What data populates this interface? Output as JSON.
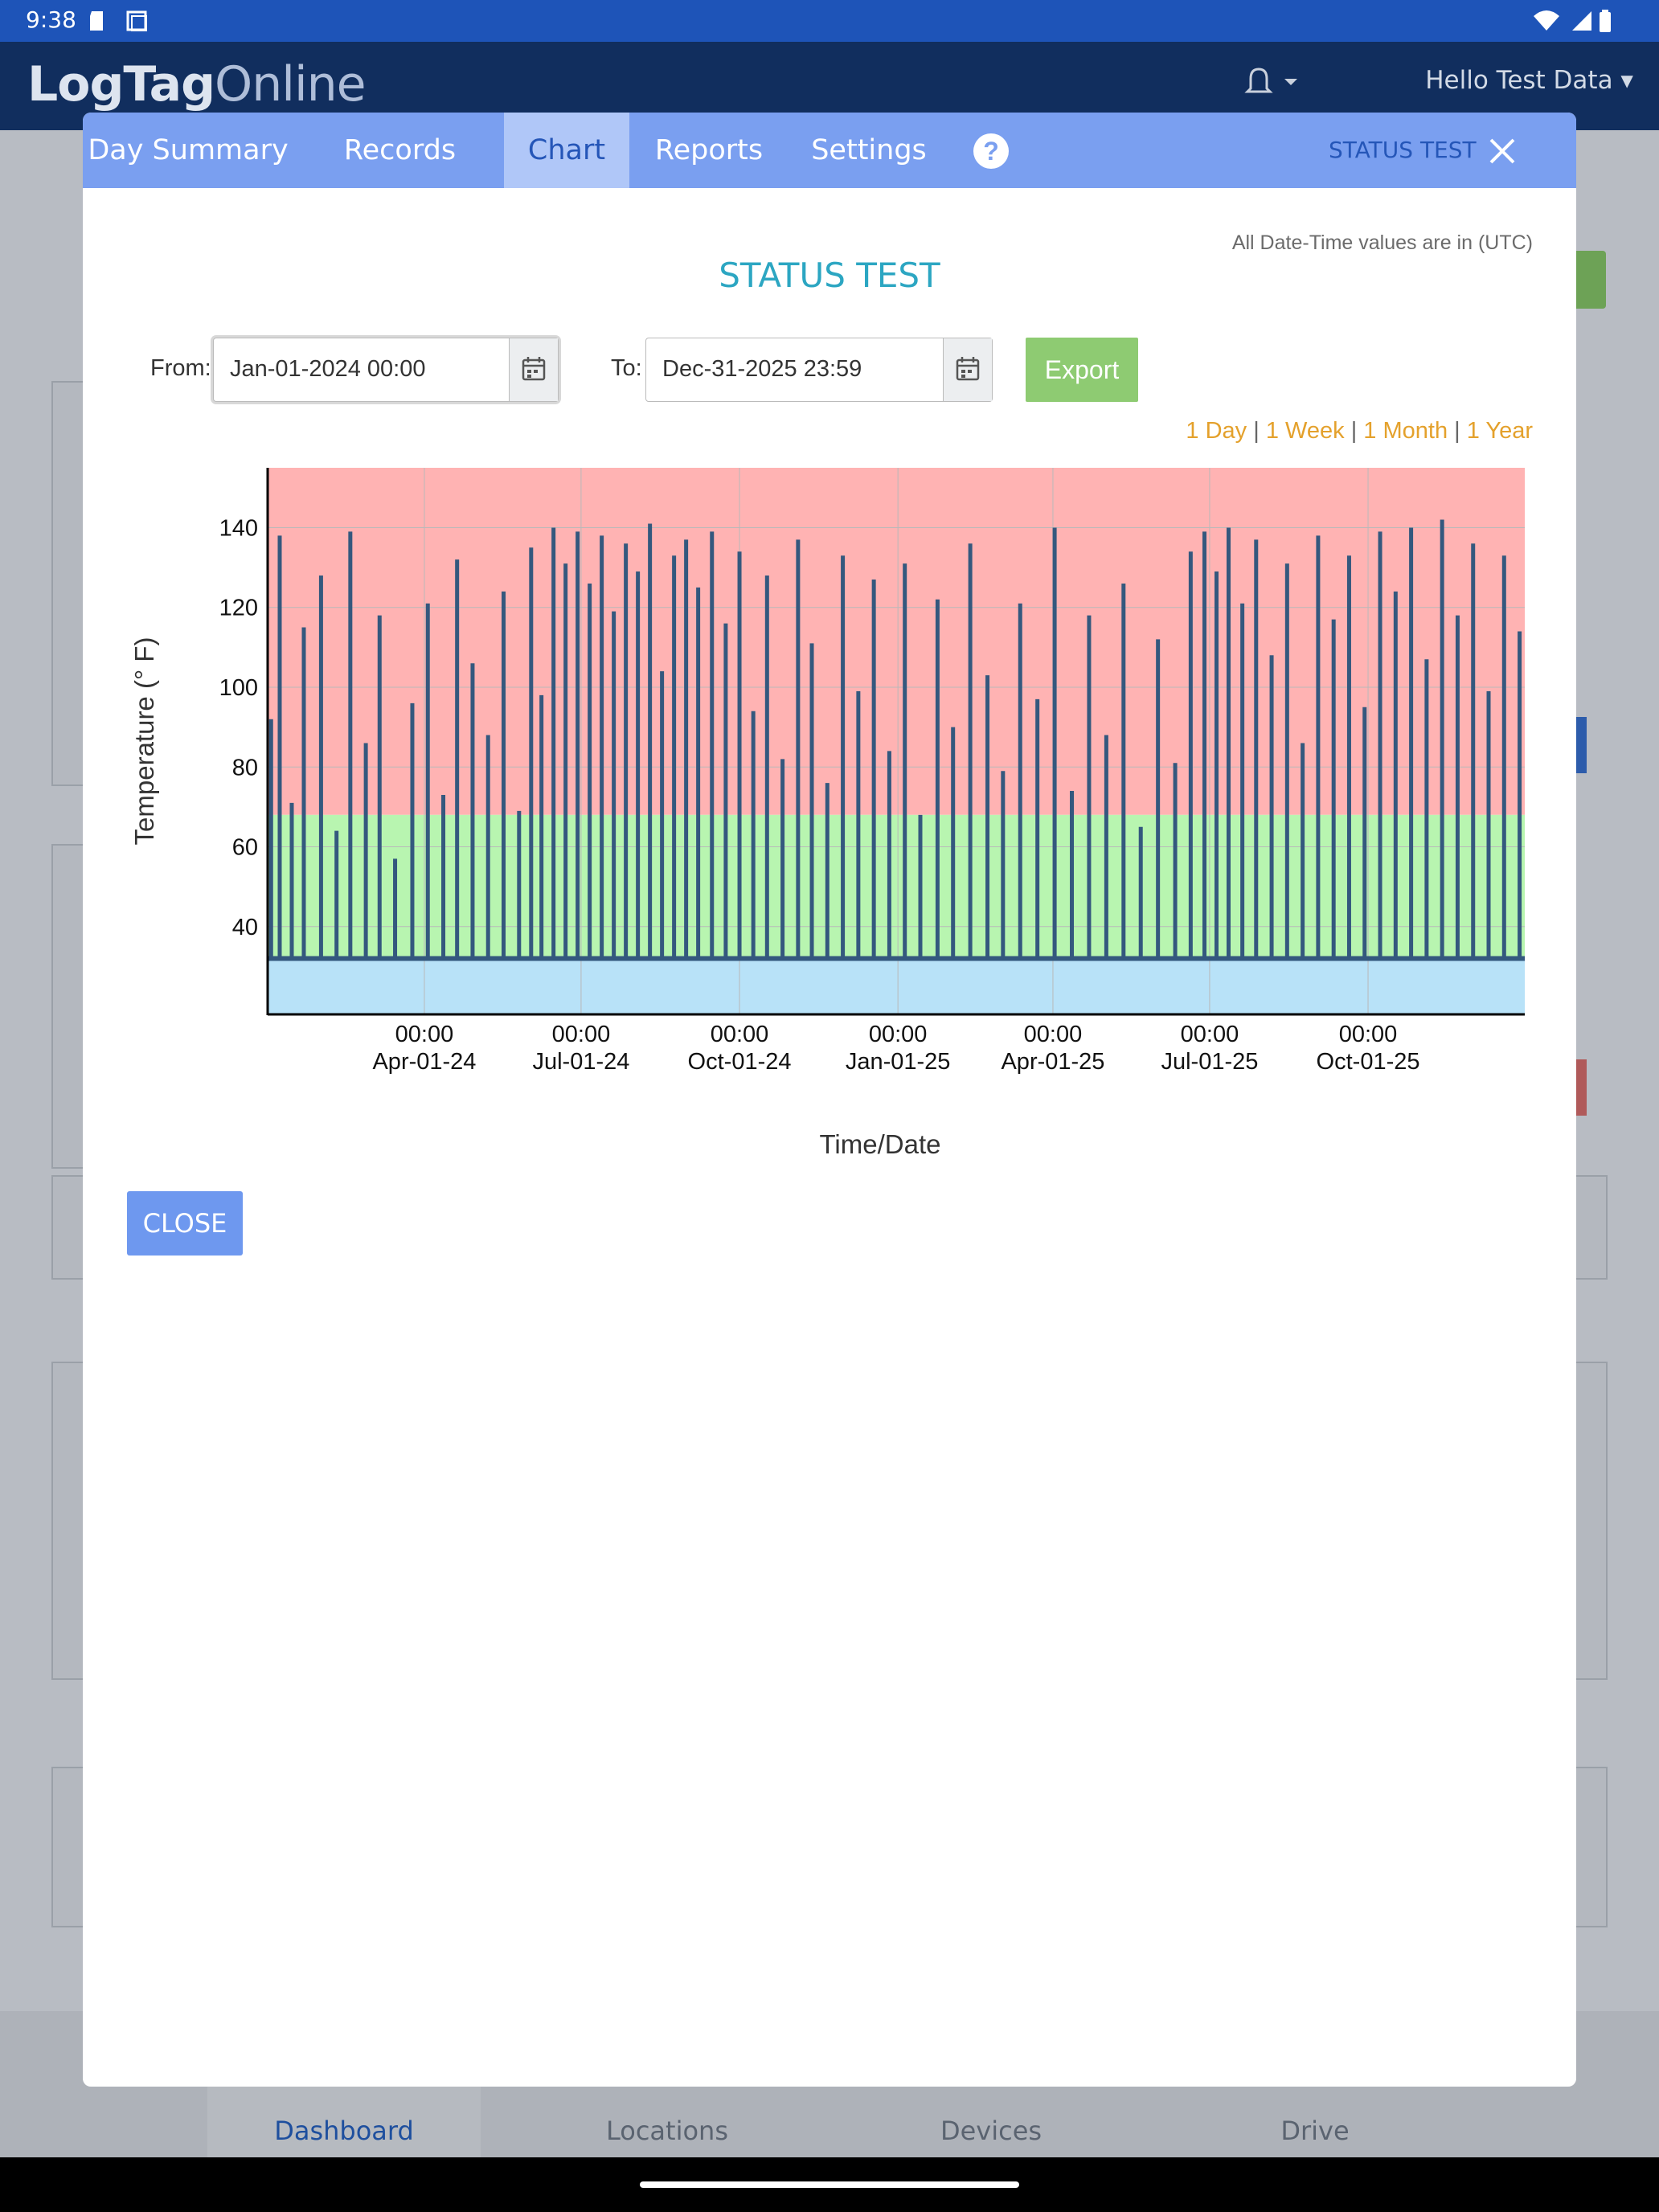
{
  "status_bar": {
    "time": "9:38"
  },
  "app": {
    "logo_bold": "LogTag",
    "logo_light": "Online",
    "user_greeting": "Hello Test Data"
  },
  "bottom_nav": {
    "items": [
      {
        "label": "Dashboard"
      },
      {
        "label": "Locations"
      },
      {
        "label": "Devices"
      },
      {
        "label": "Drive"
      }
    ]
  },
  "modal": {
    "tabs": [
      {
        "label": "Day Summary"
      },
      {
        "label": "Records"
      },
      {
        "label": "Chart"
      },
      {
        "label": "Reports"
      },
      {
        "label": "Settings"
      }
    ],
    "help_label": "?",
    "header_title": "STATUS TEST",
    "utc_note": "All Date-Time values are in (UTC)",
    "chart_title": "STATUS TEST",
    "from_label": "From:",
    "from_value": "Jan-01-2024 00:00",
    "to_label": "To:",
    "to_value": "Dec-31-2025 23:59",
    "export_label": "Export",
    "ranges": [
      "1 Day",
      "1 Week",
      "1 Month",
      "1 Year"
    ],
    "close_label": "CLOSE"
  },
  "chart_data": {
    "type": "line",
    "ylabel": "Temperature (° F)",
    "xlabel": "Time/Date",
    "ylim": [
      18,
      155
    ],
    "yticks": [
      40,
      60,
      80,
      100,
      120,
      140
    ],
    "xlim": [
      "2024-01-01",
      "2025-12-31"
    ],
    "xticks": [
      {
        "date": "2024-04-01",
        "time": "00:00",
        "label": "Apr-01-24"
      },
      {
        "date": "2024-07-01",
        "time": "00:00",
        "label": "Jul-01-24"
      },
      {
        "date": "2024-10-01",
        "time": "00:00",
        "label": "Oct-01-24"
      },
      {
        "date": "2025-01-01",
        "time": "00:00",
        "label": "Jan-01-25"
      },
      {
        "date": "2025-04-01",
        "time": "00:00",
        "label": "Apr-01-25"
      },
      {
        "date": "2025-07-01",
        "time": "00:00",
        "label": "Jul-01-25"
      },
      {
        "date": "2025-10-01",
        "time": "00:00",
        "label": "Oct-01-25"
      }
    ],
    "bands": [
      {
        "from": 68,
        "to": 155,
        "color": "#ffb3b3"
      },
      {
        "from": 32,
        "to": 68,
        "color": "#b8f5b0"
      },
      {
        "from": 18,
        "to": 32,
        "color": "#b8e2f8"
      }
    ],
    "grid": true,
    "series": [
      {
        "color": "#34587e",
        "baseline": 32,
        "points": [
          [
            "2024-01-03",
            92
          ],
          [
            "2024-01-08",
            138
          ],
          [
            "2024-01-15",
            71
          ],
          [
            "2024-01-22",
            115
          ],
          [
            "2024-02-01",
            128
          ],
          [
            "2024-02-10",
            64
          ],
          [
            "2024-02-18",
            139
          ],
          [
            "2024-02-27",
            86
          ],
          [
            "2024-03-06",
            118
          ],
          [
            "2024-03-15",
            57
          ],
          [
            "2024-03-25",
            96
          ],
          [
            "2024-04-03",
            121
          ],
          [
            "2024-04-12",
            73
          ],
          [
            "2024-04-20",
            132
          ],
          [
            "2024-04-29",
            106
          ],
          [
            "2024-05-08",
            88
          ],
          [
            "2024-05-17",
            124
          ],
          [
            "2024-05-26",
            69
          ],
          [
            "2024-06-02",
            135
          ],
          [
            "2024-06-08",
            98
          ],
          [
            "2024-06-15",
            140
          ],
          [
            "2024-06-22",
            131
          ],
          [
            "2024-06-29",
            139
          ],
          [
            "2024-07-06",
            126
          ],
          [
            "2024-07-13",
            138
          ],
          [
            "2024-07-20",
            119
          ],
          [
            "2024-07-27",
            136
          ],
          [
            "2024-08-03",
            129
          ],
          [
            "2024-08-10",
            141
          ],
          [
            "2024-08-17",
            104
          ],
          [
            "2024-08-24",
            133
          ],
          [
            "2024-08-31",
            137
          ],
          [
            "2024-09-07",
            125
          ],
          [
            "2024-09-15",
            139
          ],
          [
            "2024-09-23",
            116
          ],
          [
            "2024-10-01",
            134
          ],
          [
            "2024-10-09",
            94
          ],
          [
            "2024-10-17",
            128
          ],
          [
            "2024-10-26",
            82
          ],
          [
            "2024-11-04",
            137
          ],
          [
            "2024-11-12",
            111
          ],
          [
            "2024-11-21",
            76
          ],
          [
            "2024-11-30",
            133
          ],
          [
            "2024-12-09",
            99
          ],
          [
            "2024-12-18",
            127
          ],
          [
            "2024-12-27",
            84
          ],
          [
            "2025-01-05",
            131
          ],
          [
            "2025-01-14",
            68
          ],
          [
            "2025-01-24",
            122
          ],
          [
            "2025-02-02",
            90
          ],
          [
            "2025-02-12",
            136
          ],
          [
            "2025-02-22",
            103
          ],
          [
            "2025-03-03",
            79
          ],
          [
            "2025-03-13",
            121
          ],
          [
            "2025-03-23",
            97
          ],
          [
            "2025-04-02",
            140
          ],
          [
            "2025-04-12",
            74
          ],
          [
            "2025-04-22",
            118
          ],
          [
            "2025-05-02",
            88
          ],
          [
            "2025-05-12",
            126
          ],
          [
            "2025-05-22",
            65
          ],
          [
            "2025-06-01",
            112
          ],
          [
            "2025-06-11",
            81
          ],
          [
            "2025-06-20",
            134
          ],
          [
            "2025-06-28",
            139
          ],
          [
            "2025-07-05",
            129
          ],
          [
            "2025-07-12",
            140
          ],
          [
            "2025-07-20",
            121
          ],
          [
            "2025-07-28",
            137
          ],
          [
            "2025-08-06",
            108
          ],
          [
            "2025-08-15",
            131
          ],
          [
            "2025-08-24",
            86
          ],
          [
            "2025-09-02",
            138
          ],
          [
            "2025-09-11",
            117
          ],
          [
            "2025-09-20",
            133
          ],
          [
            "2025-09-29",
            95
          ],
          [
            "2025-10-08",
            139
          ],
          [
            "2025-10-17",
            124
          ],
          [
            "2025-10-26",
            140
          ],
          [
            "2025-11-04",
            107
          ],
          [
            "2025-11-13",
            142
          ],
          [
            "2025-11-22",
            118
          ],
          [
            "2025-12-01",
            136
          ],
          [
            "2025-12-10",
            99
          ],
          [
            "2025-12-19",
            133
          ],
          [
            "2025-12-28",
            114
          ]
        ]
      }
    ]
  }
}
